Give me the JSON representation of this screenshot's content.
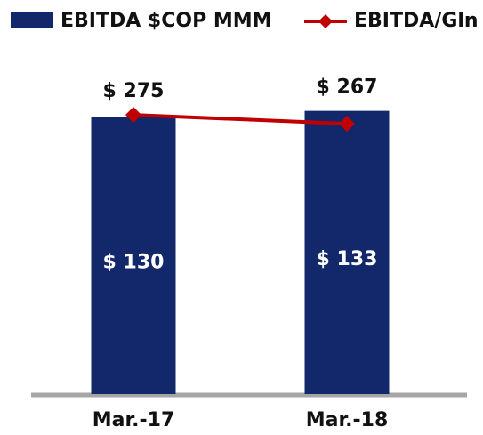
{
  "chart_data": {
    "type": "bar",
    "categories": [
      "Mar.-17",
      "Mar.-18"
    ],
    "series": [
      {
        "name": "EBITDA $COP MMM",
        "color": "#13276b",
        "type": "bar",
        "values": [
          130,
          133
        ],
        "value_labels": [
          "$ 130",
          "$ 133"
        ]
      },
      {
        "name": "EBITDA/Gln",
        "color": "#c00000",
        "type": "line",
        "axis": "y2",
        "values": [
          275,
          267
        ],
        "value_labels": [
          "$ 275",
          "$ 267"
        ]
      }
    ],
    "ylim": [
      0,
      160
    ],
    "y2lim": [
      25,
      330
    ],
    "grid": false,
    "legend": "top"
  }
}
